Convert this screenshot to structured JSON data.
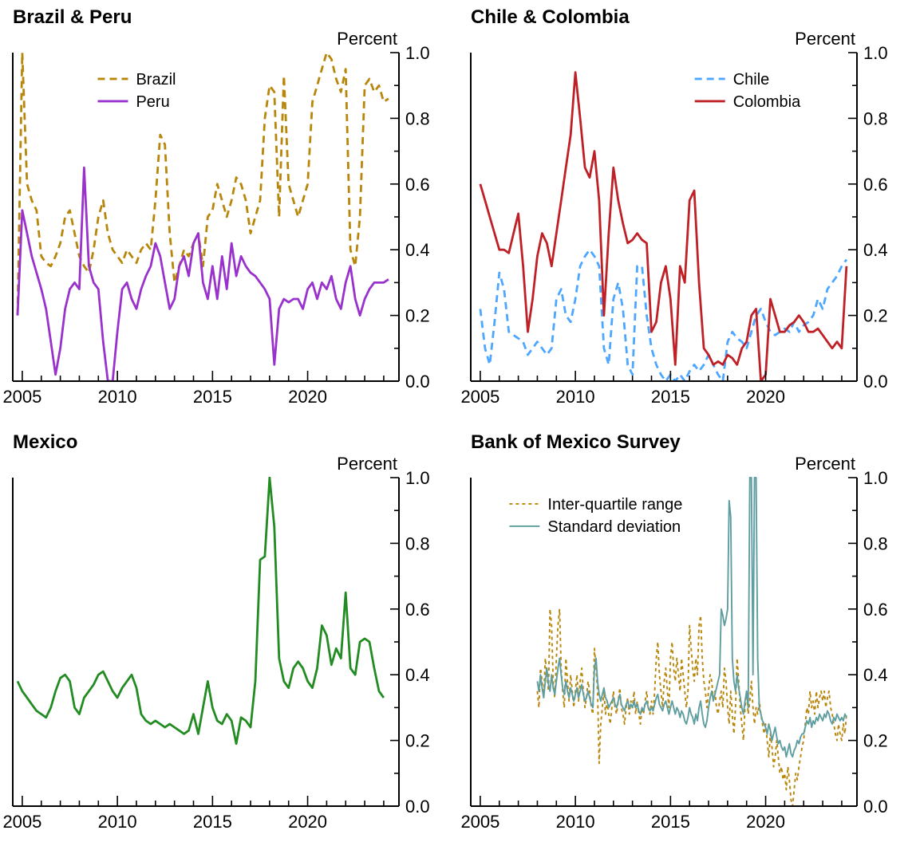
{
  "page": {
    "background": "#ffffff",
    "text_color": "#000000"
  },
  "chart_data": [
    {
      "type": "line",
      "title": "Brazil & Peru",
      "ylabel": "Percent",
      "ylim": [
        0,
        1
      ],
      "xlim": [
        2004.5,
        2024.8
      ],
      "xticks": [
        2005,
        2010,
        2015,
        2020
      ],
      "ytick_labels": [
        "0.0",
        "0.2",
        "0.4",
        "0.6",
        "0.8",
        "1.0"
      ],
      "grid": false,
      "legend": {
        "x": 0.22,
        "y": 0.08
      },
      "series": [
        {
          "name": "Brazil",
          "color": "#b8860b",
          "line_style": "dashed",
          "x_start": 2004.75,
          "x_step": 0.25,
          "values": [
            0.2,
            1.0,
            0.6,
            0.55,
            0.52,
            0.38,
            0.36,
            0.35,
            0.38,
            0.42,
            0.5,
            0.52,
            0.45,
            0.38,
            0.35,
            0.33,
            0.4,
            0.5,
            0.55,
            0.45,
            0.4,
            0.38,
            0.36,
            0.4,
            0.38,
            0.36,
            0.4,
            0.42,
            0.4,
            0.55,
            0.75,
            0.72,
            0.45,
            0.3,
            0.35,
            0.4,
            0.38,
            0.42,
            0.45,
            0.35,
            0.5,
            0.52,
            0.6,
            0.55,
            0.5,
            0.55,
            0.62,
            0.6,
            0.55,
            0.45,
            0.5,
            0.55,
            0.8,
            0.9,
            0.88,
            0.5,
            0.93,
            0.6,
            0.55,
            0.5,
            0.55,
            0.6,
            0.85,
            0.9,
            0.95,
            1.0,
            0.98,
            0.92,
            0.88,
            0.95,
            0.4,
            0.35,
            0.5,
            0.9,
            0.92,
            0.88,
            0.9,
            0.85,
            0.86
          ]
        },
        {
          "name": "Peru",
          "color": "#9932cc",
          "line_style": "solid",
          "x_start": 2004.75,
          "x_step": 0.25,
          "values": [
            0.2,
            0.52,
            0.45,
            0.38,
            0.33,
            0.28,
            0.22,
            0.12,
            0.02,
            0.1,
            0.22,
            0.28,
            0.3,
            0.28,
            0.65,
            0.35,
            0.3,
            0.28,
            0.12,
            0.0,
            0.0,
            0.15,
            0.28,
            0.3,
            0.25,
            0.22,
            0.28,
            0.32,
            0.35,
            0.42,
            0.38,
            0.3,
            0.22,
            0.25,
            0.35,
            0.38,
            0.32,
            0.42,
            0.45,
            0.3,
            0.25,
            0.35,
            0.25,
            0.38,
            0.28,
            0.42,
            0.32,
            0.38,
            0.35,
            0.33,
            0.32,
            0.3,
            0.28,
            0.25,
            0.05,
            0.22,
            0.25,
            0.24,
            0.25,
            0.25,
            0.22,
            0.28,
            0.3,
            0.25,
            0.3,
            0.28,
            0.32,
            0.25,
            0.22,
            0.3,
            0.35,
            0.25,
            0.2,
            0.25,
            0.28,
            0.3,
            0.3,
            0.3,
            0.31
          ]
        }
      ]
    },
    {
      "type": "line",
      "title": "Chile & Colombia",
      "ylabel": "Percent",
      "ylim": [
        0,
        1
      ],
      "xlim": [
        2004.5,
        2024.8
      ],
      "xticks": [
        2005,
        2010,
        2015,
        2020
      ],
      "ytick_labels": [
        "0.0",
        "0.2",
        "0.4",
        "0.6",
        "0.8",
        "1.0"
      ],
      "grid": false,
      "legend": {
        "x": 0.58,
        "y": 0.08
      },
      "series": [
        {
          "name": "Chile",
          "color": "#4da6ff",
          "line_style": "dashed",
          "x_start": 2005.0,
          "x_step": 0.25,
          "values": [
            0.22,
            0.1,
            0.05,
            0.18,
            0.33,
            0.28,
            0.15,
            0.14,
            0.13,
            0.12,
            0.08,
            0.1,
            0.12,
            0.1,
            0.08,
            0.1,
            0.25,
            0.28,
            0.2,
            0.18,
            0.25,
            0.35,
            0.38,
            0.4,
            0.38,
            0.35,
            0.1,
            0.05,
            0.25,
            0.3,
            0.22,
            0.05,
            0.02,
            0.35,
            0.35,
            0.2,
            0.1,
            0.05,
            0.02,
            0.0,
            0.02,
            0.0,
            0.02,
            0.0,
            0.03,
            0.05,
            0.03,
            0.05,
            0.08,
            0.05,
            0.02,
            0.0,
            0.12,
            0.15,
            0.13,
            0.12,
            0.1,
            0.15,
            0.2,
            0.22,
            0.18,
            0.15,
            0.14,
            0.15,
            0.16,
            0.15,
            0.18,
            0.15,
            0.17,
            0.18,
            0.2,
            0.25,
            0.22,
            0.28,
            0.3,
            0.32,
            0.35,
            0.37
          ]
        },
        {
          "name": "Colombia",
          "color": "#bf2026",
          "line_style": "solid",
          "x_start": 2005.0,
          "x_step": 0.25,
          "values": [
            0.6,
            0.55,
            0.5,
            0.45,
            0.4,
            0.4,
            0.39,
            0.45,
            0.51,
            0.35,
            0.15,
            0.25,
            0.38,
            0.45,
            0.42,
            0.35,
            0.45,
            0.55,
            0.65,
            0.75,
            0.94,
            0.8,
            0.65,
            0.62,
            0.7,
            0.55,
            0.2,
            0.45,
            0.65,
            0.55,
            0.48,
            0.42,
            0.43,
            0.45,
            0.43,
            0.42,
            0.15,
            0.18,
            0.3,
            0.35,
            0.25,
            0.05,
            0.35,
            0.3,
            0.55,
            0.58,
            0.3,
            0.1,
            0.08,
            0.05,
            0.06,
            0.05,
            0.08,
            0.07,
            0.05,
            0.1,
            0.12,
            0.2,
            0.22,
            0.0,
            0.02,
            0.25,
            0.2,
            0.15,
            0.15,
            0.17,
            0.18,
            0.2,
            0.18,
            0.15,
            0.15,
            0.16,
            0.14,
            0.12,
            0.1,
            0.12,
            0.1,
            0.35
          ]
        }
      ]
    },
    {
      "type": "line",
      "title": "Mexico",
      "ylabel": "Percent",
      "ylim": [
        0,
        1
      ],
      "xlim": [
        2004.5,
        2024.8
      ],
      "xticks": [
        2005,
        2010,
        2015,
        2020
      ],
      "ytick_labels": [
        "0.0",
        "0.2",
        "0.4",
        "0.6",
        "0.8",
        "1.0"
      ],
      "grid": false,
      "legend": null,
      "series": [
        {
          "name": "Mexico",
          "color": "#228b22",
          "line_style": "solid",
          "x_start": 2004.75,
          "x_step": 0.25,
          "values": [
            0.38,
            0.35,
            0.33,
            0.31,
            0.29,
            0.28,
            0.27,
            0.3,
            0.35,
            0.39,
            0.4,
            0.38,
            0.3,
            0.28,
            0.33,
            0.35,
            0.37,
            0.4,
            0.41,
            0.38,
            0.35,
            0.33,
            0.36,
            0.38,
            0.4,
            0.36,
            0.28,
            0.26,
            0.25,
            0.26,
            0.25,
            0.24,
            0.25,
            0.24,
            0.23,
            0.22,
            0.23,
            0.28,
            0.22,
            0.3,
            0.38,
            0.3,
            0.26,
            0.25,
            0.28,
            0.26,
            0.19,
            0.27,
            0.26,
            0.24,
            0.38,
            0.75,
            0.76,
            1.0,
            0.85,
            0.45,
            0.38,
            0.36,
            0.42,
            0.44,
            0.42,
            0.38,
            0.36,
            0.42,
            0.55,
            0.52,
            0.43,
            0.48,
            0.45,
            0.65,
            0.42,
            0.4,
            0.5,
            0.51,
            0.5,
            0.42,
            0.35,
            0.33
          ]
        }
      ]
    },
    {
      "type": "line",
      "title": "Bank of Mexico Survey",
      "ylabel": "Percent",
      "ylim": [
        0,
        1
      ],
      "xlim": [
        2004.5,
        2024.8
      ],
      "xticks": [
        2005,
        2010,
        2015,
        2020
      ],
      "ytick_labels": [
        "0.0",
        "0.2",
        "0.4",
        "0.6",
        "0.8",
        "1.0"
      ],
      "grid": false,
      "legend": {
        "x": 0.1,
        "y": 0.08
      },
      "series": [
        {
          "name": "Inter-quartile range",
          "color": "#b8860b",
          "line_style": "dashed",
          "x_start": 2008.0,
          "x_step": 0.08333,
          "values": [
            0.35,
            0.3,
            0.42,
            0.38,
            0.33,
            0.45,
            0.4,
            0.35,
            0.6,
            0.55,
            0.38,
            0.33,
            0.45,
            0.55,
            0.6,
            0.42,
            0.35,
            0.3,
            0.45,
            0.38,
            0.32,
            0.4,
            0.35,
            0.3,
            0.35,
            0.4,
            0.32,
            0.38,
            0.42,
            0.35,
            0.3,
            0.33,
            0.38,
            0.35,
            0.3,
            0.28,
            0.48,
            0.42,
            0.35,
            0.13,
            0.25,
            0.3,
            0.35,
            0.28,
            0.32,
            0.28,
            0.25,
            0.3,
            0.35,
            0.3,
            0.28,
            0.32,
            0.36,
            0.3,
            0.28,
            0.25,
            0.3,
            0.33,
            0.28,
            0.32,
            0.3,
            0.35,
            0.28,
            0.32,
            0.28,
            0.25,
            0.3,
            0.28,
            0.32,
            0.35,
            0.3,
            0.28,
            0.32,
            0.28,
            0.35,
            0.45,
            0.5,
            0.4,
            0.35,
            0.3,
            0.38,
            0.42,
            0.35,
            0.3,
            0.45,
            0.5,
            0.42,
            0.38,
            0.45,
            0.4,
            0.35,
            0.45,
            0.4,
            0.35,
            0.3,
            0.35,
            0.55,
            0.48,
            0.42,
            0.38,
            0.45,
            0.4,
            0.55,
            0.58,
            0.45,
            0.38,
            0.35,
            0.3,
            0.35,
            0.4,
            0.38,
            0.32,
            0.35,
            0.3,
            0.28,
            0.32,
            0.35,
            0.3,
            0.42,
            0.38,
            0.3,
            0.25,
            0.35,
            0.28,
            0.22,
            0.3,
            0.45,
            0.38,
            0.3,
            0.25,
            0.2,
            0.3,
            0.35,
            0.28,
            0.32,
            0.38,
            0.3,
            0.25,
            0.3,
            0.28,
            0.32,
            0.28,
            0.25,
            0.22,
            0.25,
            0.2,
            0.15,
            0.22,
            0.18,
            0.12,
            0.15,
            0.2,
            0.15,
            0.1,
            0.12,
            0.08,
            0.1,
            0.05,
            0.12,
            0.08,
            0.02,
            0.0,
            0.05,
            0.1,
            0.08,
            0.12,
            0.15,
            0.18,
            0.2,
            0.25,
            0.3,
            0.28,
            0.35,
            0.3,
            0.32,
            0.28,
            0.35,
            0.3,
            0.33,
            0.35,
            0.32,
            0.35,
            0.3,
            0.33,
            0.35,
            0.3,
            0.28,
            0.25,
            0.22,
            0.2,
            0.25,
            0.22,
            0.2,
            0.25,
            0.22,
            0.28
          ]
        },
        {
          "name": "Standard deviation",
          "color": "#5f9ea0",
          "line_style": "solid",
          "x_start": 2008.0,
          "x_step": 0.08333,
          "values": [
            0.38,
            0.35,
            0.4,
            0.36,
            0.33,
            0.38,
            0.42,
            0.37,
            0.35,
            0.4,
            0.36,
            0.34,
            0.38,
            0.42,
            0.45,
            0.4,
            0.36,
            0.34,
            0.38,
            0.35,
            0.33,
            0.36,
            0.34,
            0.32,
            0.34,
            0.36,
            0.33,
            0.35,
            0.37,
            0.34,
            0.32,
            0.33,
            0.35,
            0.33,
            0.31,
            0.3,
            0.42,
            0.45,
            0.38,
            0.34,
            0.32,
            0.34,
            0.36,
            0.33,
            0.32,
            0.3,
            0.31,
            0.32,
            0.33,
            0.31,
            0.3,
            0.32,
            0.34,
            0.31,
            0.3,
            0.29,
            0.31,
            0.32,
            0.3,
            0.31,
            0.3,
            0.32,
            0.3,
            0.31,
            0.29,
            0.28,
            0.3,
            0.29,
            0.31,
            0.32,
            0.3,
            0.29,
            0.3,
            0.29,
            0.31,
            0.33,
            0.34,
            0.31,
            0.3,
            0.29,
            0.31,
            0.32,
            0.3,
            0.28,
            0.3,
            0.32,
            0.3,
            0.28,
            0.3,
            0.29,
            0.27,
            0.29,
            0.28,
            0.26,
            0.25,
            0.27,
            0.3,
            0.28,
            0.27,
            0.25,
            0.28,
            0.26,
            0.3,
            0.32,
            0.28,
            0.25,
            0.24,
            0.26,
            0.3,
            0.33,
            0.35,
            0.32,
            0.34,
            0.36,
            0.38,
            0.4,
            0.6,
            0.58,
            0.55,
            0.57,
            0.6,
            0.93,
            0.88,
            0.45,
            0.38,
            0.35,
            0.4,
            0.36,
            0.33,
            0.3,
            0.28,
            0.32,
            0.35,
            0.3,
            1.0,
            1.0,
            0.4,
            1.0,
            1.0,
            0.45,
            0.3,
            0.28,
            0.26,
            0.25,
            0.24,
            0.22,
            0.25,
            0.23,
            0.2,
            0.22,
            0.24,
            0.21,
            0.19,
            0.2,
            0.18,
            0.17,
            0.18,
            0.15,
            0.17,
            0.19,
            0.16,
            0.15,
            0.17,
            0.18,
            0.2,
            0.19,
            0.21,
            0.22,
            0.22,
            0.24,
            0.26,
            0.25,
            0.27,
            0.24,
            0.26,
            0.25,
            0.27,
            0.26,
            0.28,
            0.27,
            0.26,
            0.28,
            0.27,
            0.29,
            0.28,
            0.26,
            0.25,
            0.27,
            0.26,
            0.28,
            0.27,
            0.26,
            0.27,
            0.26,
            0.28,
            0.27
          ]
        }
      ]
    }
  ]
}
